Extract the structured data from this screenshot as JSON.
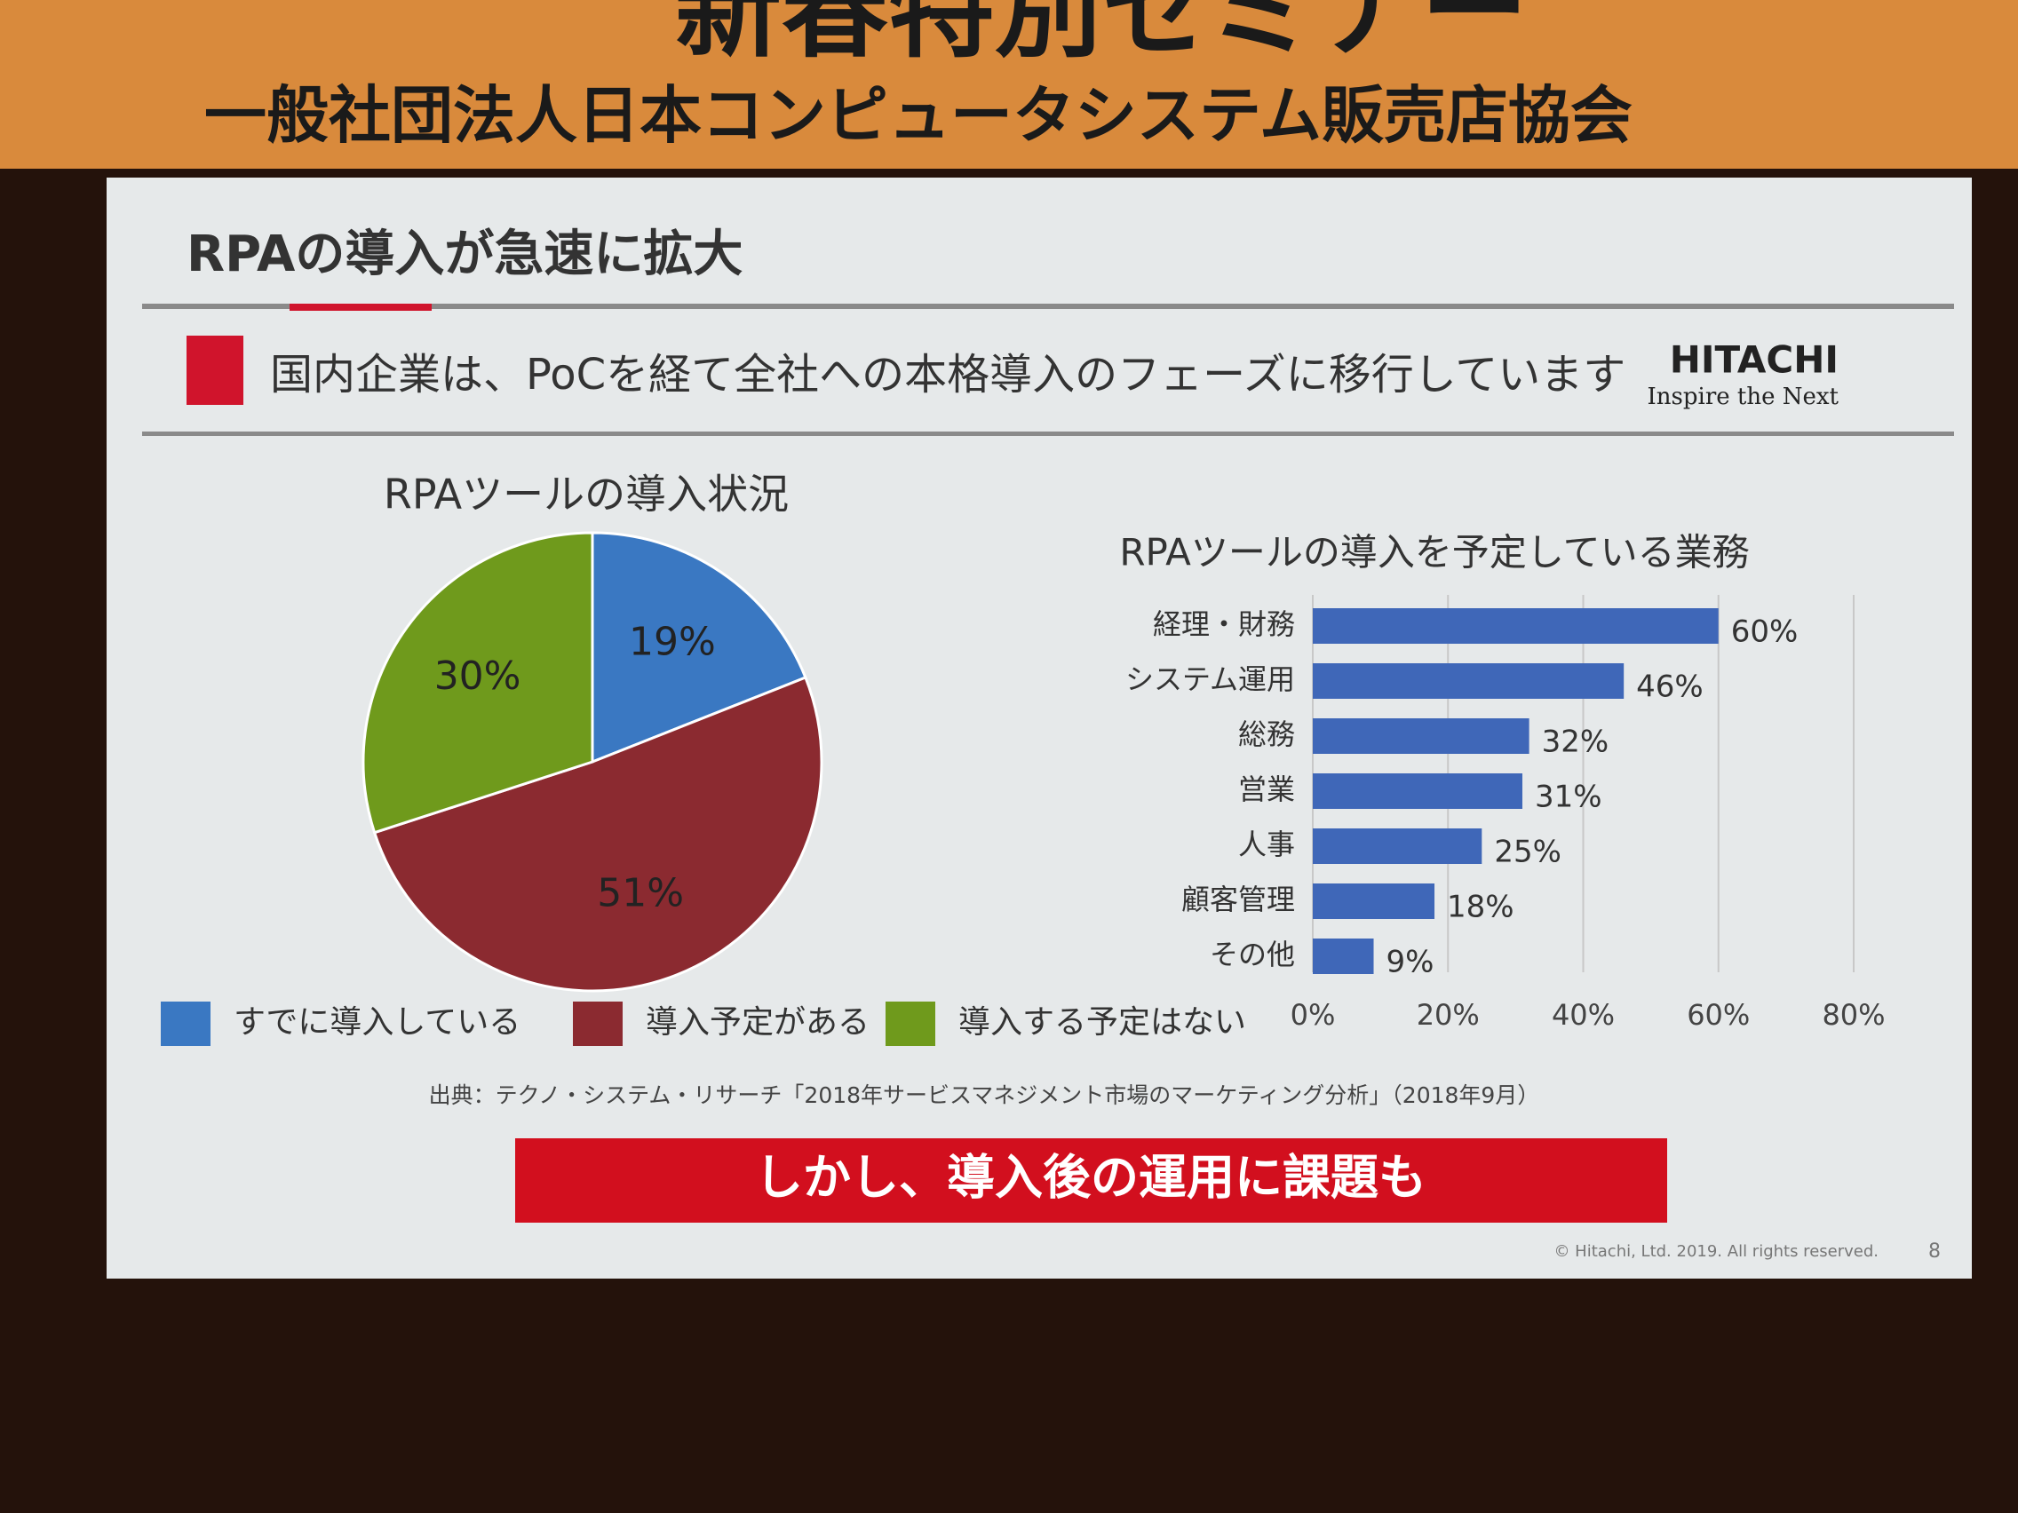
{
  "banner": {
    "title": "新春特別セミナー",
    "organization": "一般社団法人日本コンピュータシステム販売店協会"
  },
  "slide": {
    "title": "RPAの導入が急速に拡大",
    "logo": {
      "name": "HITACHI",
      "tagline": "Inspire the Next"
    },
    "headline": "国内企業は、PoCを経て全社への本格導入のフェーズに移行しています",
    "source": "出典：テクノ・システム・リサーチ「2018年サービスマネジメント市場のマーケティング分析」（2018年9月）",
    "callout": "しかし、導入後の運用に課題も",
    "copyright": "© Hitachi, Ltd. 2019. All rights reserved.",
    "page": 8
  },
  "chart_data": [
    {
      "type": "pie",
      "title": "RPAツールの導入状況",
      "categories": [
        "すでに導入している",
        "導入予定がある",
        "導入する予定はない"
      ],
      "values": [
        19,
        51,
        30
      ],
      "value_labels": [
        "19%",
        "51%",
        "30%"
      ],
      "colors": [
        "#3a78c2",
        "#8b2a30",
        "#6f9a1c"
      ]
    },
    {
      "type": "bar",
      "orientation": "horizontal",
      "title": "RPAツールの導入を予定している業務",
      "categories": [
        "経理・財務",
        "システム運用",
        "総務",
        "営業",
        "人事",
        "顧客管理",
        "その他"
      ],
      "values": [
        60,
        46,
        32,
        31,
        25,
        18,
        9
      ],
      "value_labels": [
        "60%",
        "46%",
        "32%",
        "31%",
        "25%",
        "18%",
        "9%"
      ],
      "color": "#3f67b8",
      "xlim": [
        0,
        80
      ],
      "xticks": [
        {
          "value": 0,
          "label": "0%"
        },
        {
          "value": 20,
          "label": "20%"
        },
        {
          "value": 40,
          "label": "40%"
        },
        {
          "value": 60,
          "label": "60%"
        },
        {
          "value": 80,
          "label": "80%"
        }
      ],
      "grid": true
    }
  ]
}
